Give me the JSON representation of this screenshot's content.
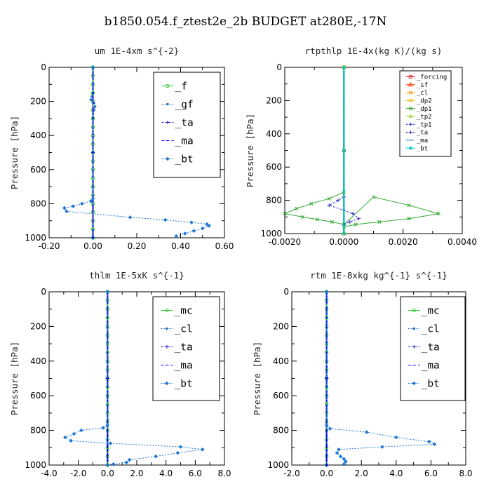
{
  "title": "b1850.054.f_ztest2e_2b  BUDGET at280E,-17N",
  "chart_data": [
    {
      "type": "line",
      "title": "um   1E-4xm s^{-2}",
      "ylabel": "Pressure [hPa]",
      "xlim": [
        -0.2,
        0.6
      ],
      "ylim": [
        1000,
        0
      ],
      "xticks": [
        "-0.20",
        "0.00",
        "0.20",
        "0.40",
        "0.60"
      ],
      "xtick_values": [
        -0.2,
        0.0,
        0.2,
        0.4,
        0.6
      ],
      "yticks": [
        "0",
        "200",
        "400",
        "600",
        "800",
        "1000"
      ],
      "ytick_values": [
        0,
        200,
        400,
        600,
        800,
        1000
      ],
      "legend": "top-right",
      "series": [
        {
          "name": "_f",
          "color": "#33cc33",
          "marker": "circle",
          "dash": "none",
          "x": [
            0,
            0,
            0,
            0,
            0,
            0,
            0,
            0,
            0,
            0,
            0,
            0,
            0,
            0,
            0,
            0,
            0,
            0,
            0,
            0,
            0
          ],
          "y": [
            0,
            50,
            100,
            150,
            200,
            250,
            300,
            350,
            400,
            450,
            500,
            550,
            600,
            650,
            700,
            750,
            800,
            850,
            900,
            950,
            1000
          ]
        },
        {
          "name": "_gf",
          "color": "#1f6fbf",
          "marker": "dot",
          "dash": "2,2",
          "x": [
            0,
            0,
            -0.005,
            -0.01,
            0.005,
            0.01,
            0.005,
            0,
            0,
            0
          ],
          "y": [
            0,
            150,
            170,
            190,
            210,
            230,
            250,
            300,
            500,
            1000
          ]
        },
        {
          "name": "_ta",
          "color": "#1a1acc",
          "marker": "plus",
          "dash": "3,2",
          "x": [
            0,
            0,
            0
          ],
          "y": [
            0,
            500,
            1000
          ]
        },
        {
          "name": "_ma",
          "color": "#0000ee",
          "marker": "dash",
          "dash": "4,3",
          "x": [
            0,
            0,
            0
          ],
          "y": [
            0,
            500,
            1000
          ]
        },
        {
          "name": "_bt",
          "color": "#1f77d4",
          "marker": "diamond",
          "dash": "2,2",
          "x": [
            0,
            0,
            -0.01,
            -0.05,
            -0.09,
            -0.13,
            -0.12,
            0.17,
            0.33,
            0.45,
            0.52,
            0.53,
            0.5,
            0.46,
            0.42,
            0.38
          ],
          "y": [
            0,
            770,
            785,
            800,
            815,
            825,
            845,
            880,
            895,
            910,
            920,
            930,
            945,
            960,
            975,
            990
          ]
        }
      ]
    },
    {
      "type": "line",
      "title": "rtpthlp   1E-4x(kg K)/(kg s)",
      "ylabel": "Pressure [hPa]",
      "xlim": [
        -0.002,
        0.004
      ],
      "ylim": [
        1000,
        0
      ],
      "xticks": [
        "-0.0020",
        "0.0000",
        "0.0020",
        "0.0040"
      ],
      "xtick_values": [
        -0.002,
        0.0,
        0.002,
        0.004
      ],
      "yticks": [
        "0",
        "200",
        "400",
        "600",
        "800",
        "1000"
      ],
      "ytick_values": [
        0,
        200,
        400,
        600,
        800,
        1000
      ],
      "legend": "top-right",
      "series": [
        {
          "name": "_forcing",
          "color": "#e00000",
          "marker": "circle",
          "dash": "none",
          "x": [
            0,
            0,
            0
          ],
          "y": [
            0,
            500,
            1000
          ]
        },
        {
          "name": "_sf",
          "color": "#ff3300",
          "marker": "triangle",
          "dash": "none",
          "x": [
            0,
            0,
            0
          ],
          "y": [
            0,
            500,
            1000
          ]
        },
        {
          "name": "_cl",
          "color": "#ff9900",
          "marker": "star",
          "dash": "none",
          "x": [
            0,
            0,
            0
          ],
          "y": [
            0,
            500,
            1000
          ]
        },
        {
          "name": "_dp2",
          "color": "#e6b800",
          "marker": "circle",
          "dash": "none",
          "x": [
            0,
            0,
            0
          ],
          "y": [
            0,
            500,
            1000
          ]
        },
        {
          "name": "_dp1",
          "color": "#2ea82e",
          "marker": "cross",
          "dash": "none",
          "x": [
            0,
            0,
            -0.0005,
            -0.0011,
            -0.0016,
            -0.002,
            -0.0014,
            -0.0009,
            -0.0004,
            0,
            0.001,
            0.0022,
            0.0032,
            0.0022,
            0.0012,
            0.0004,
            0,
            0
          ],
          "y": [
            0,
            750,
            790,
            820,
            850,
            880,
            900,
            915,
            930,
            945,
            780,
            830,
            880,
            910,
            930,
            945,
            960,
            1000
          ]
        },
        {
          "name": "_tp2",
          "color": "#99cc33",
          "marker": "cross",
          "dash": "none",
          "x": [
            0,
            0,
            0
          ],
          "y": [
            0,
            500,
            1000
          ]
        },
        {
          "name": "_tp1",
          "color": "#3333cc",
          "marker": "plus",
          "dash": "3,2",
          "x": [
            0,
            0,
            -0.0002,
            -0.0005,
            0,
            0.0003,
            0.0005,
            0.0002,
            0,
            0
          ],
          "y": [
            0,
            780,
            800,
            830,
            860,
            880,
            910,
            930,
            945,
            1000
          ]
        },
        {
          "name": "_ta",
          "color": "#2222aa",
          "marker": "plus",
          "dash": "3,2",
          "x": [
            0,
            0,
            0
          ],
          "y": [
            0,
            500,
            1000
          ]
        },
        {
          "name": "_ma",
          "color": "#1f77d4",
          "marker": "dash",
          "dash": "4,3",
          "x": [
            0,
            0,
            0
          ],
          "y": [
            0,
            500,
            1000
          ]
        },
        {
          "name": "_bt",
          "color": "#00cccc",
          "marker": "diamond",
          "dash": "none",
          "x": [
            0,
            0,
            0
          ],
          "y": [
            0,
            500,
            1000
          ]
        }
      ]
    },
    {
      "type": "line",
      "title": "thlm   1E-5xK s^{-1}",
      "ylabel": "Pressure [hPa]",
      "xlim": [
        -4.0,
        8.0
      ],
      "ylim": [
        1000,
        0
      ],
      "xticks": [
        "-4.0",
        "-2.0",
        "0.0",
        "2.0",
        "4.0",
        "6.0",
        "8.0"
      ],
      "xtick_values": [
        -4,
        -2,
        0,
        2,
        4,
        6,
        8
      ],
      "yticks": [
        "0",
        "200",
        "400",
        "600",
        "800",
        "1000"
      ],
      "ytick_values": [
        0,
        200,
        400,
        600,
        800,
        1000
      ],
      "legend": "top-right",
      "series": [
        {
          "name": "_mc",
          "color": "#33cc33",
          "marker": "circle",
          "dash": "none",
          "x": [
            0,
            0,
            0,
            0,
            0,
            0,
            0,
            0,
            0,
            0,
            0,
            0,
            0,
            0,
            0,
            0,
            0,
            0,
            0,
            0,
            0
          ],
          "y": [
            0,
            50,
            100,
            150,
            200,
            250,
            300,
            350,
            400,
            450,
            500,
            550,
            600,
            650,
            700,
            750,
            800,
            850,
            900,
            950,
            1000
          ]
        },
        {
          "name": "_cl",
          "color": "#1f6fbf",
          "marker": "dot",
          "dash": "2,2",
          "x": [
            0,
            0,
            0
          ],
          "y": [
            0,
            500,
            1000
          ]
        },
        {
          "name": "_ta",
          "color": "#1a1acc",
          "marker": "plus",
          "dash": "3,2",
          "x": [
            0,
            0,
            0
          ],
          "y": [
            0,
            500,
            1000
          ]
        },
        {
          "name": "_ma",
          "color": "#0000ee",
          "marker": "dash",
          "dash": "4,3",
          "x": [
            0,
            0,
            0
          ],
          "y": [
            0,
            500,
            1000
          ]
        },
        {
          "name": "_bt",
          "color": "#1f77d4",
          "marker": "diamond",
          "dash": "2,2",
          "x": [
            0,
            0,
            -0.3,
            -1.8,
            -2.3,
            -2.9,
            -2.5,
            0.2,
            5.0,
            6.5,
            4.8,
            3.3,
            1.5,
            1.3,
            0.4,
            0
          ],
          "y": [
            0,
            770,
            785,
            800,
            820,
            840,
            860,
            875,
            895,
            910,
            930,
            950,
            970,
            985,
            995,
            1000
          ]
        }
      ]
    },
    {
      "type": "line",
      "title": "rtm   1E-8xkg kg^{-1} s^{-1}",
      "ylabel": "Pressure [hPa]",
      "xlim": [
        -2.0,
        8.0
      ],
      "ylim": [
        1000,
        0
      ],
      "xticks": [
        "-2.0",
        "0.0",
        "2.0",
        "4.0",
        "6.0",
        "8.0"
      ],
      "xtick_values": [
        -2,
        0,
        2,
        4,
        6,
        8
      ],
      "yticks": [
        "0",
        "200",
        "400",
        "600",
        "800",
        "1000"
      ],
      "ytick_values": [
        0,
        200,
        400,
        600,
        800,
        1000
      ],
      "legend": "top-right",
      "series": [
        {
          "name": "_mc",
          "color": "#33cc33",
          "marker": "circle",
          "dash": "none",
          "x": [
            0,
            0,
            0,
            0,
            0,
            0,
            0,
            0,
            0,
            0,
            0,
            0,
            0,
            0,
            0,
            0,
            0,
            0,
            0,
            0,
            0
          ],
          "y": [
            0,
            50,
            100,
            150,
            200,
            250,
            300,
            350,
            400,
            450,
            500,
            550,
            600,
            650,
            700,
            750,
            800,
            850,
            900,
            950,
            1000
          ]
        },
        {
          "name": "_cl",
          "color": "#1f6fbf",
          "marker": "dot",
          "dash": "2,2",
          "x": [
            0,
            0,
            0
          ],
          "y": [
            0,
            500,
            1000
          ]
        },
        {
          "name": "_ta",
          "color": "#1a1acc",
          "marker": "plus",
          "dash": "3,2",
          "x": [
            0,
            0,
            0
          ],
          "y": [
            0,
            500,
            1000
          ]
        },
        {
          "name": "_ma",
          "color": "#0000ee",
          "marker": "dash",
          "dash": "4,3",
          "x": [
            0,
            0,
            0
          ],
          "y": [
            0,
            500,
            1000
          ]
        },
        {
          "name": "_bt",
          "color": "#1f77d4",
          "marker": "diamond",
          "dash": "2,2",
          "x": [
            0,
            0,
            0.2,
            2.3,
            4.0,
            5.9,
            6.2,
            3.2,
            0.7,
            0.6,
            0.8,
            1.0,
            1.1,
            1.0
          ],
          "y": [
            0,
            770,
            790,
            810,
            840,
            865,
            880,
            895,
            910,
            930,
            950,
            965,
            980,
            995
          ]
        }
      ]
    }
  ]
}
